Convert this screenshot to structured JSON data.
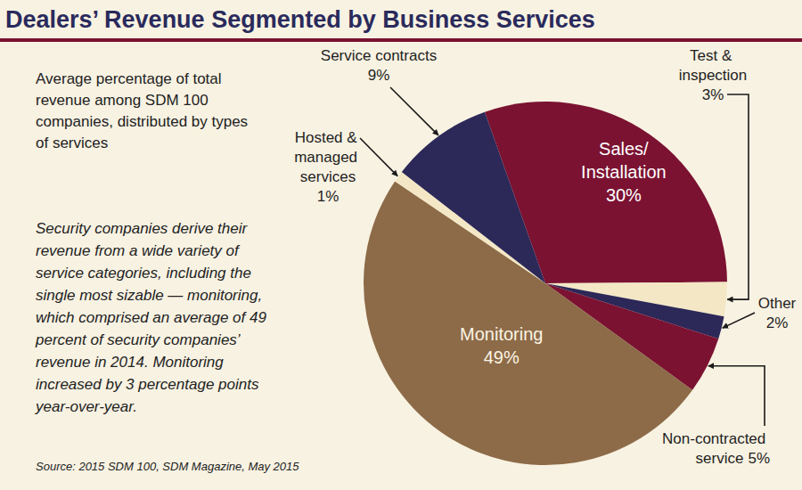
{
  "chart_data": {
    "type": "pie",
    "title": "Dealers’ Revenue Segmented by Business Services",
    "subtitle": "Average percentage of total revenue among SDM 100 companies, distributed by types of services",
    "annotations": [
      "Security companies derive their revenue from a wide variety of service categories, including the single most sizable — monitoring, which comprised an average of 49 percent of security companies’ revenue in 2014. Monitoring increased by 3 percentage points year-over-year.",
      "Source: 2015 SDM 100, SDM Magazine, May 2015"
    ],
    "categories": [
      "Sales/Installation",
      "Test & inspection",
      "Other",
      "Non-contracted service",
      "Monitoring",
      "Hosted & managed services",
      "Service contracts"
    ],
    "values": [
      30,
      3,
      2,
      5,
      49,
      1,
      9
    ],
    "value_labels": [
      "30%",
      "3%",
      "2%",
      "5%",
      "49%",
      "1%",
      "9%"
    ],
    "colors": [
      "#7b1232",
      "#f3e7c6",
      "#2c2858",
      "#7b1232",
      "#8d6b48",
      "#f3e7c6",
      "#2c2858"
    ],
    "data_labels": true
  }
}
